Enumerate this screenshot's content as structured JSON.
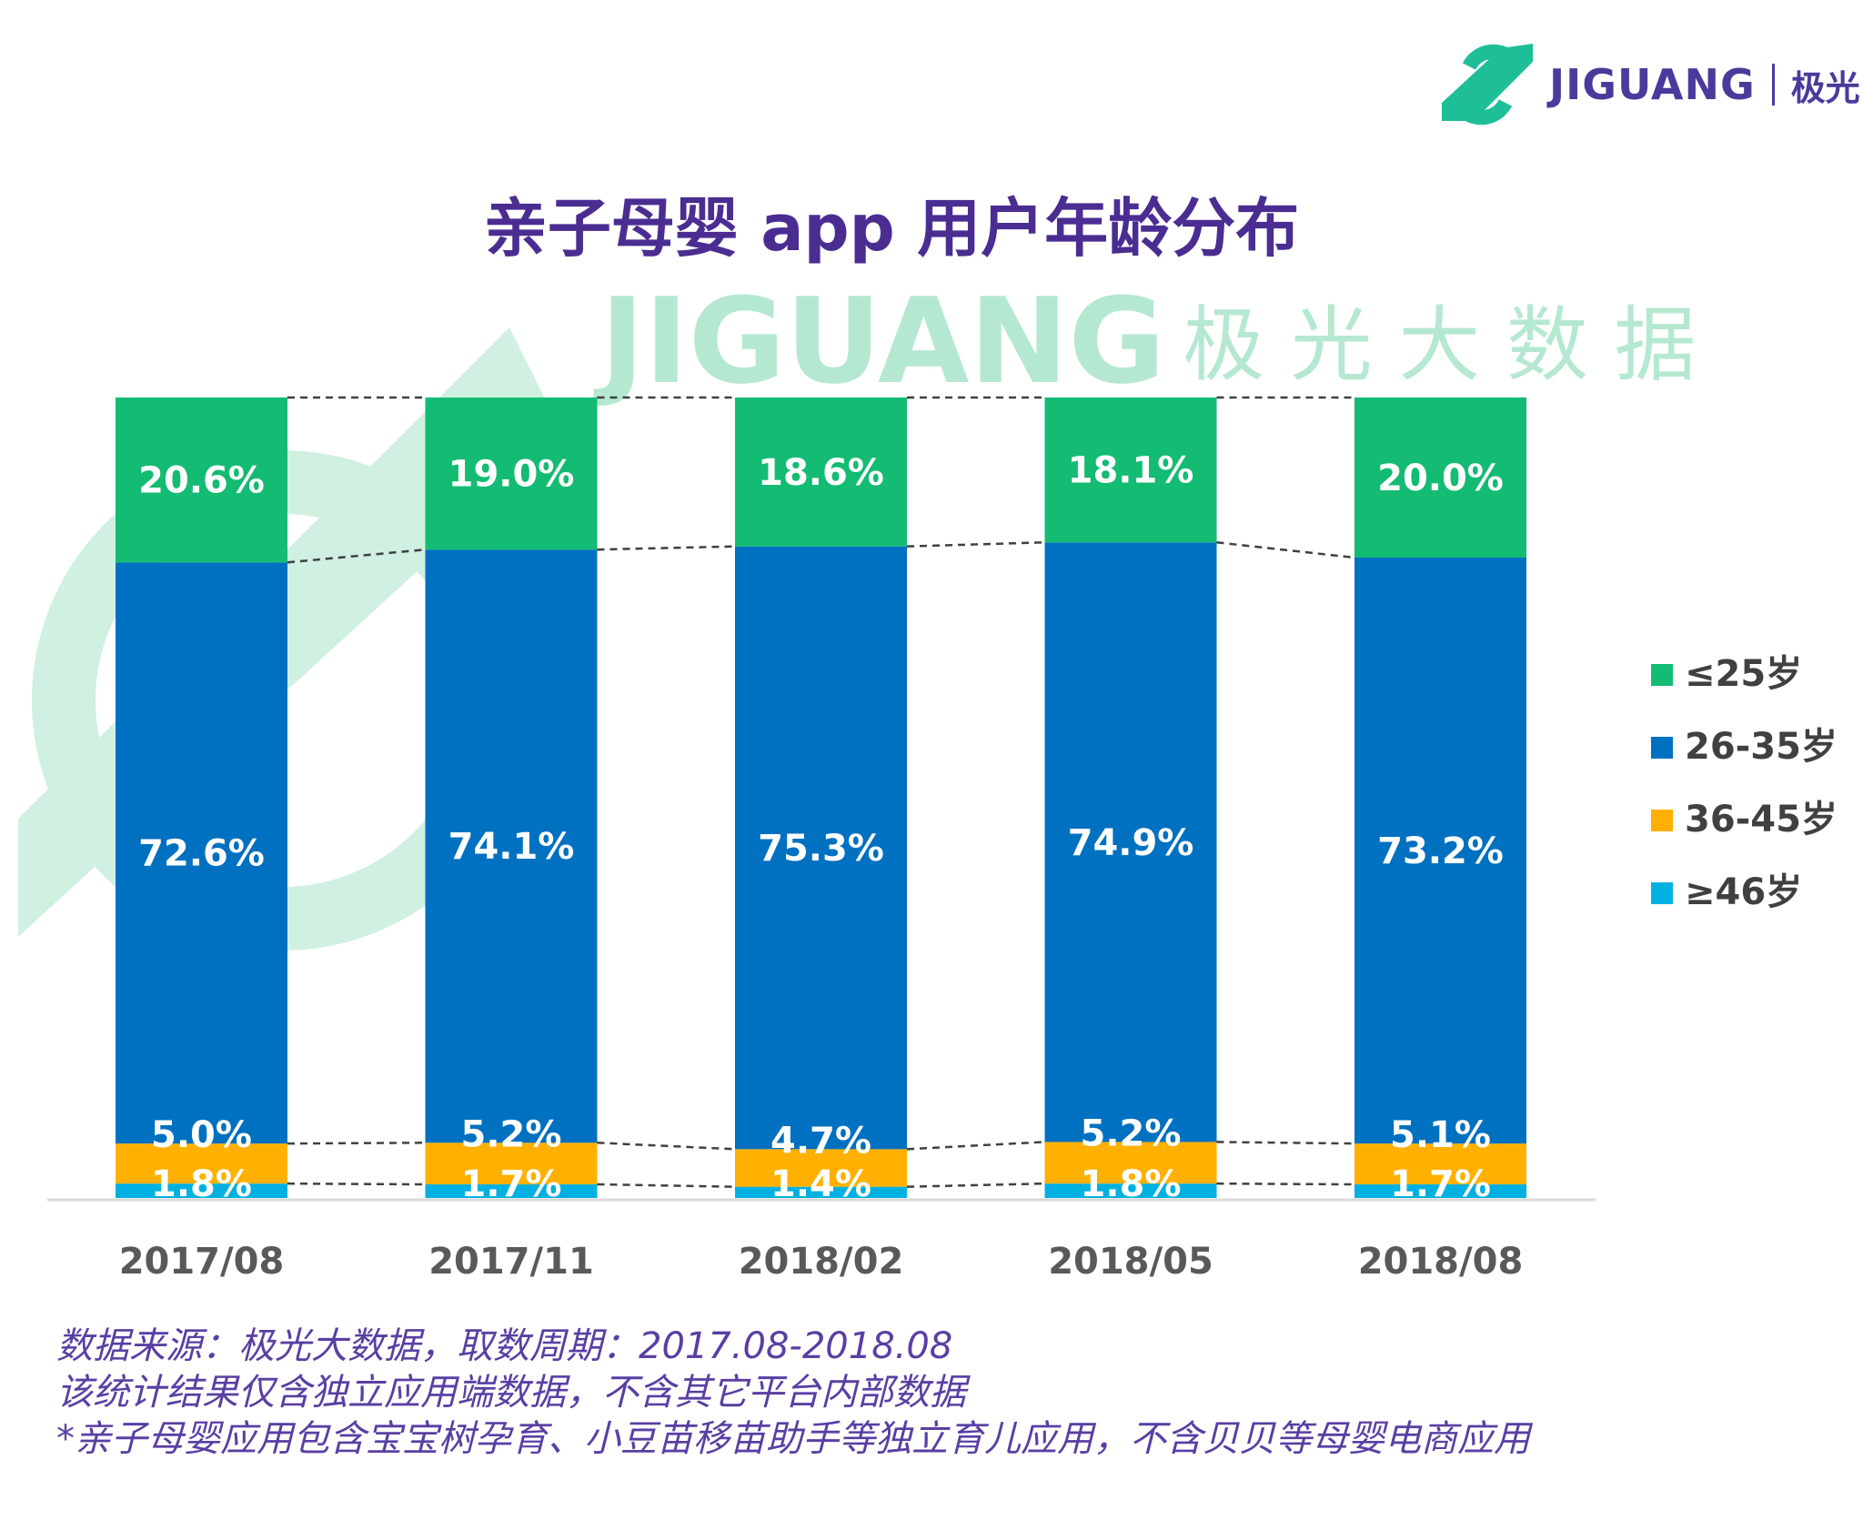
{
  "logo": {
    "text": "JIGUANG",
    "cn": "极光",
    "color": "#1ebf98"
  },
  "watermark": {
    "text": "JIGUANG",
    "cn": "极 光 大 数 据"
  },
  "chart_data": {
    "type": "bar",
    "stacked": true,
    "title": "亲子母婴 app 用户年龄分布",
    "categories": [
      "2017/08",
      "2017/11",
      "2018/02",
      "2018/05",
      "2018/08"
    ],
    "series": [
      {
        "name": "≥46岁",
        "color": "#00b0e0",
        "values": [
          1.8,
          1.7,
          1.4,
          1.8,
          1.7
        ]
      },
      {
        "name": "36-45岁",
        "color": "#ffb000",
        "values": [
          5.0,
          5.2,
          4.7,
          5.2,
          5.1
        ]
      },
      {
        "name": "26-35岁",
        "color": "#0070c0",
        "values": [
          72.6,
          74.1,
          75.3,
          74.9,
          73.2
        ]
      },
      {
        "name": "≤25岁",
        "color": "#14bb72",
        "values": [
          20.6,
          19.0,
          18.6,
          18.1,
          20.0
        ]
      }
    ],
    "value_suffix": "%",
    "ylim": [
      0,
      100
    ],
    "grid": false,
    "legend_position": "right",
    "series_lines": "dashed"
  },
  "footnotes": [
    "数据来源：极光大数据，取数周期：2017.08-2018.08",
    "该统计结果仅含独立应用端数据，不含其它平台内部数据",
    " *亲子母婴应用包含宝宝树孕育、小豆苗移苗助手等独立育儿应用，不含贝贝等母婴电商应用"
  ]
}
